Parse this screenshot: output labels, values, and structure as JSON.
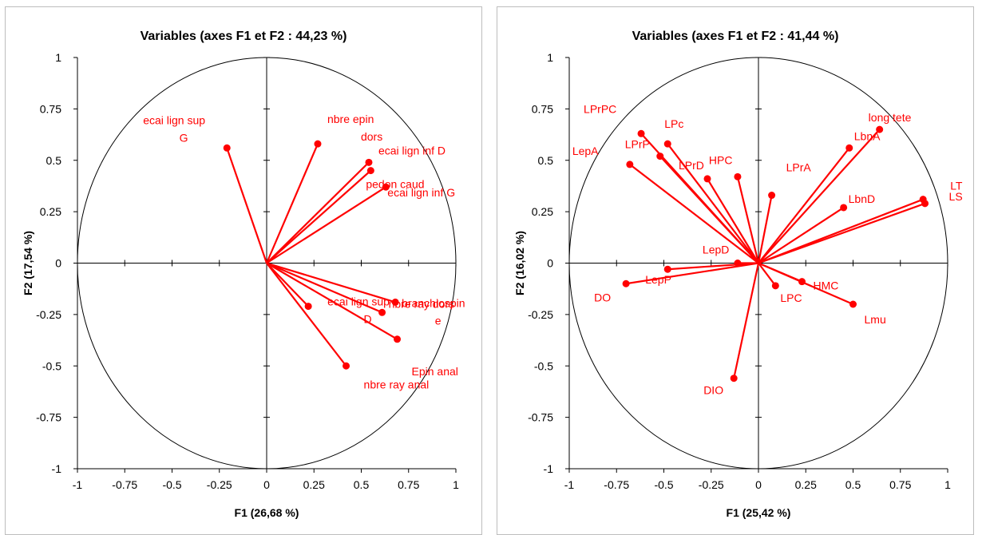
{
  "colors": {
    "vector": "#ff0000",
    "axis": "#000000",
    "circle": "#000000"
  },
  "chart_data": [
    {
      "type": "scatter",
      "title": "Variables (axes F1 et F2 : 44,23 %)",
      "xlabel": "F1 (26,68 %)",
      "ylabel": "F2 (17,54 %)",
      "xlim": [
        -1,
        1
      ],
      "ylim": [
        -1,
        1
      ],
      "xticks": [
        "-1",
        "-0.75",
        "-0.5",
        "-0.25",
        "0",
        "0.25",
        "0.5",
        "0.75",
        "1"
      ],
      "yticks": [
        "-1",
        "-0.75",
        "-0.5",
        "-0.25",
        "0",
        "0.25",
        "0.5",
        "0.75",
        "1"
      ],
      "grid": false,
      "correlation_circle": true,
      "points": [
        {
          "label": [
            "ecai lign sup",
            "G"
          ],
          "x": -0.21,
          "y": 0.56
        },
        {
          "label": [
            "nbre epin",
            "dors"
          ],
          "x": 0.27,
          "y": 0.58
        },
        {
          "label": [
            "ecai lign inf D"
          ],
          "x": 0.54,
          "y": 0.49
        },
        {
          "label": [
            "pedon caud"
          ],
          "x": 0.55,
          "y": 0.45
        },
        {
          "label": [
            "ecai lign inf G"
          ],
          "x": 0.63,
          "y": 0.37
        },
        {
          "label": [
            "ecai lign sup",
            "D"
          ],
          "x": 0.22,
          "y": -0.21
        },
        {
          "label": [
            "branchiospin",
            "e"
          ],
          "x": 0.68,
          "y": -0.19
        },
        {
          "label": [
            "nbre ray dors"
          ],
          "x": 0.61,
          "y": -0.24
        },
        {
          "label": [
            "Epin anal"
          ],
          "x": 0.69,
          "y": -0.37
        },
        {
          "label": [
            "nbre ray anal"
          ],
          "x": 0.42,
          "y": -0.5
        }
      ]
    },
    {
      "type": "scatter",
      "title": "Variables (axes F1 et F2 : 41,44 %)",
      "xlabel": "F1 (25,42 %)",
      "ylabel": "F2 (16,02 %)",
      "xlim": [
        -1,
        1
      ],
      "ylim": [
        -1,
        1
      ],
      "xticks": [
        "-1",
        "-0.75",
        "-0.5",
        "-0.25",
        "0",
        "0.25",
        "0.5",
        "0.75",
        "1"
      ],
      "yticks": [
        "-1",
        "-0.75",
        "-0.5",
        "-0.25",
        "0",
        "0.25",
        "0.5",
        "0.75",
        "1"
      ],
      "grid": false,
      "correlation_circle": true,
      "points": [
        {
          "label": [
            "LPrPC"
          ],
          "x": -0.62,
          "y": 0.63
        },
        {
          "label": [
            "LPc"
          ],
          "x": -0.48,
          "y": 0.58
        },
        {
          "label": [
            "LPrP"
          ],
          "x": -0.52,
          "y": 0.52
        },
        {
          "label": [
            "LepA"
          ],
          "x": -0.68,
          "y": 0.48
        },
        {
          "label": [
            "LPrD"
          ],
          "x": -0.27,
          "y": 0.41
        },
        {
          "label": [
            "HPC"
          ],
          "x": -0.11,
          "y": 0.42
        },
        {
          "label": [
            "LPrA"
          ],
          "x": 0.07,
          "y": 0.33
        },
        {
          "label": [
            "long tete"
          ],
          "x": 0.64,
          "y": 0.65
        },
        {
          "label": [
            "LbnA"
          ],
          "x": 0.48,
          "y": 0.56
        },
        {
          "label": [
            "LbnD"
          ],
          "x": 0.45,
          "y": 0.27
        },
        {
          "label": [
            "LT"
          ],
          "x": 0.87,
          "y": 0.31
        },
        {
          "label": [
            "LS"
          ],
          "x": 0.88,
          "y": 0.29
        },
        {
          "label": [
            "LepD"
          ],
          "x": -0.11,
          "y": 0.0
        },
        {
          "label": [
            "LepP"
          ],
          "x": -0.48,
          "y": -0.03
        },
        {
          "label": [
            "DO"
          ],
          "x": -0.7,
          "y": -0.1
        },
        {
          "label": [
            "LPC"
          ],
          "x": 0.09,
          "y": -0.11
        },
        {
          "label": [
            "HMC"
          ],
          "x": 0.23,
          "y": -0.09
        },
        {
          "label": [
            "Lmu"
          ],
          "x": 0.5,
          "y": -0.2
        },
        {
          "label": [
            "DIO"
          ],
          "x": -0.13,
          "y": -0.56
        }
      ]
    }
  ]
}
